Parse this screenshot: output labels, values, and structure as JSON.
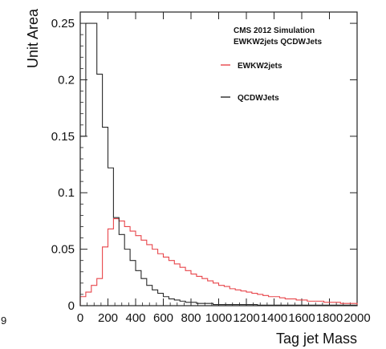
{
  "chart_data": {
    "type": "line",
    "step": true,
    "xlabel": "Tag jet Mass",
    "ylabel": "Unit Area",
    "xlim": [
      0,
      2000
    ],
    "ylim": [
      0,
      0.26
    ],
    "x_ticks": [
      0,
      200,
      400,
      600,
      800,
      1000,
      1200,
      1400,
      1600,
      1800,
      2000
    ],
    "x_tick_labels": [
      "0",
      "200",
      "400",
      "600",
      "800",
      "1000",
      "1200",
      "1400",
      "1600",
      "1800",
      "2000"
    ],
    "y_ticks": [
      0,
      0.05,
      0.1,
      0.15,
      0.2,
      0.25
    ],
    "y_tick_labels": [
      "0",
      "0.05",
      "0.1",
      "0.15",
      "0.2",
      "0.25"
    ],
    "bin_width": 40,
    "legend_header": [
      "CMS 2012 Simulation",
      "EWKW2jets QCDWJets"
    ],
    "legend_placement": "top-right",
    "series": [
      {
        "name": "EWKW2jets",
        "color": "#e8454a",
        "values": [
          0.008,
          0.012,
          0.018,
          0.024,
          0.052,
          0.068,
          0.077,
          0.075,
          0.07,
          0.066,
          0.062,
          0.058,
          0.054,
          0.05,
          0.046,
          0.043,
          0.04,
          0.037,
          0.034,
          0.031,
          0.028,
          0.026,
          0.024,
          0.022,
          0.02,
          0.018,
          0.017,
          0.015,
          0.014,
          0.013,
          0.012,
          0.011,
          0.01,
          0.009,
          0.008,
          0.008,
          0.007,
          0.006,
          0.006,
          0.005,
          0.005,
          0.004,
          0.004,
          0.004,
          0.003,
          0.003,
          0.003,
          0.002,
          0.002,
          0.002
        ]
      },
      {
        "name": "QCDWJets",
        "color": "#2a2a2a",
        "values": [
          0.15,
          0.25,
          0.25,
          0.205,
          0.158,
          0.122,
          0.078,
          0.063,
          0.05,
          0.04,
          0.031,
          0.024,
          0.018,
          0.014,
          0.011,
          0.008,
          0.006,
          0.005,
          0.004,
          0.003,
          0.003,
          0.002,
          0.002,
          0.002,
          0.001,
          0.001,
          0.001,
          0.001,
          0.001,
          0.001,
          0.001,
          0.001,
          0.0005,
          0.0005,
          0.0005,
          0.0005,
          0.0005,
          0.0005,
          0.0005,
          0.0005,
          0.0005,
          0.0005,
          0.0005,
          0.0005,
          0.0005,
          0.0005,
          0.0005,
          0.0005,
          0.0005,
          0.0005
        ]
      }
    ]
  },
  "stray_text": [
    "9"
  ]
}
